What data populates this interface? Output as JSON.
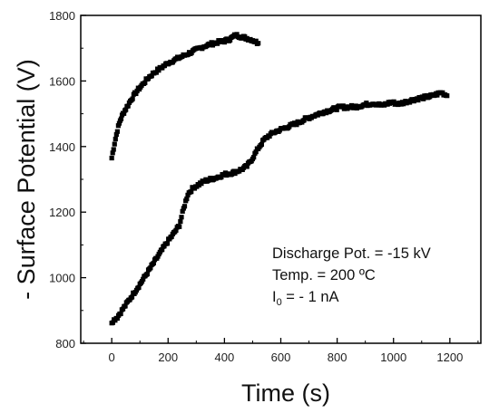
{
  "chart_data": {
    "type": "scatter",
    "xlabel": "Time (s)",
    "ylabel": "- Surface Potential (V)",
    "xlim": [
      -110,
      1310
    ],
    "ylim": [
      800,
      1800
    ],
    "xticks": [
      0,
      200,
      400,
      600,
      800,
      1000,
      1200
    ],
    "yticks": [
      800,
      1000,
      1200,
      1400,
      1600,
      1800
    ],
    "x_tick_labels": [
      "0",
      "200",
      "400",
      "600",
      "800",
      "1000",
      "1200"
    ],
    "y_tick_labels": [
      "800",
      "1000",
      "1200",
      "1400",
      "1600",
      "1800"
    ],
    "grid": false,
    "marker_color": "#000000",
    "series": [
      {
        "x": [
          0,
          10,
          20,
          30,
          40,
          50,
          70,
          90,
          110,
          130,
          150,
          175,
          200,
          225,
          250,
          275,
          300,
          325,
          350,
          375,
          400,
          420,
          440,
          460,
          480,
          500,
          520
        ],
        "y": [
          1365,
          1410,
          1450,
          1480,
          1500,
          1515,
          1545,
          1570,
          1590,
          1610,
          1625,
          1640,
          1655,
          1665,
          1675,
          1685,
          1695,
          1705,
          1712,
          1718,
          1722,
          1728,
          1740,
          1735,
          1730,
          1725,
          1715
        ]
      },
      {
        "x": [
          0,
          20,
          40,
          60,
          80,
          100,
          130,
          160,
          190,
          220,
          240,
          255,
          270,
          290,
          310,
          330,
          350,
          370,
          400,
          430,
          460,
          480,
          500,
          520,
          540,
          560,
          580,
          600,
          630,
          660,
          690,
          720,
          750,
          780,
          810,
          840,
          870,
          900,
          930,
          960,
          990,
          1020,
          1050,
          1080,
          1110,
          1140,
          1170,
          1190
        ],
        "y": [
          865,
          880,
          905,
          930,
          955,
          980,
          1020,
          1060,
          1100,
          1135,
          1160,
          1210,
          1255,
          1275,
          1285,
          1295,
          1300,
          1305,
          1315,
          1320,
          1330,
          1340,
          1365,
          1395,
          1420,
          1435,
          1445,
          1452,
          1462,
          1472,
          1485,
          1495,
          1505,
          1512,
          1520,
          1520,
          1522,
          1528,
          1532,
          1525,
          1535,
          1530,
          1538,
          1545,
          1550,
          1555,
          1565,
          1555
        ]
      }
    ],
    "annotations": [
      "Discharge Pot. = -15 kV",
      "Temp. = 200 ºC"
    ],
    "current_annotation": {
      "prefix": "I",
      "subscript": "0",
      "suffix": " = - 1 nA"
    }
  }
}
